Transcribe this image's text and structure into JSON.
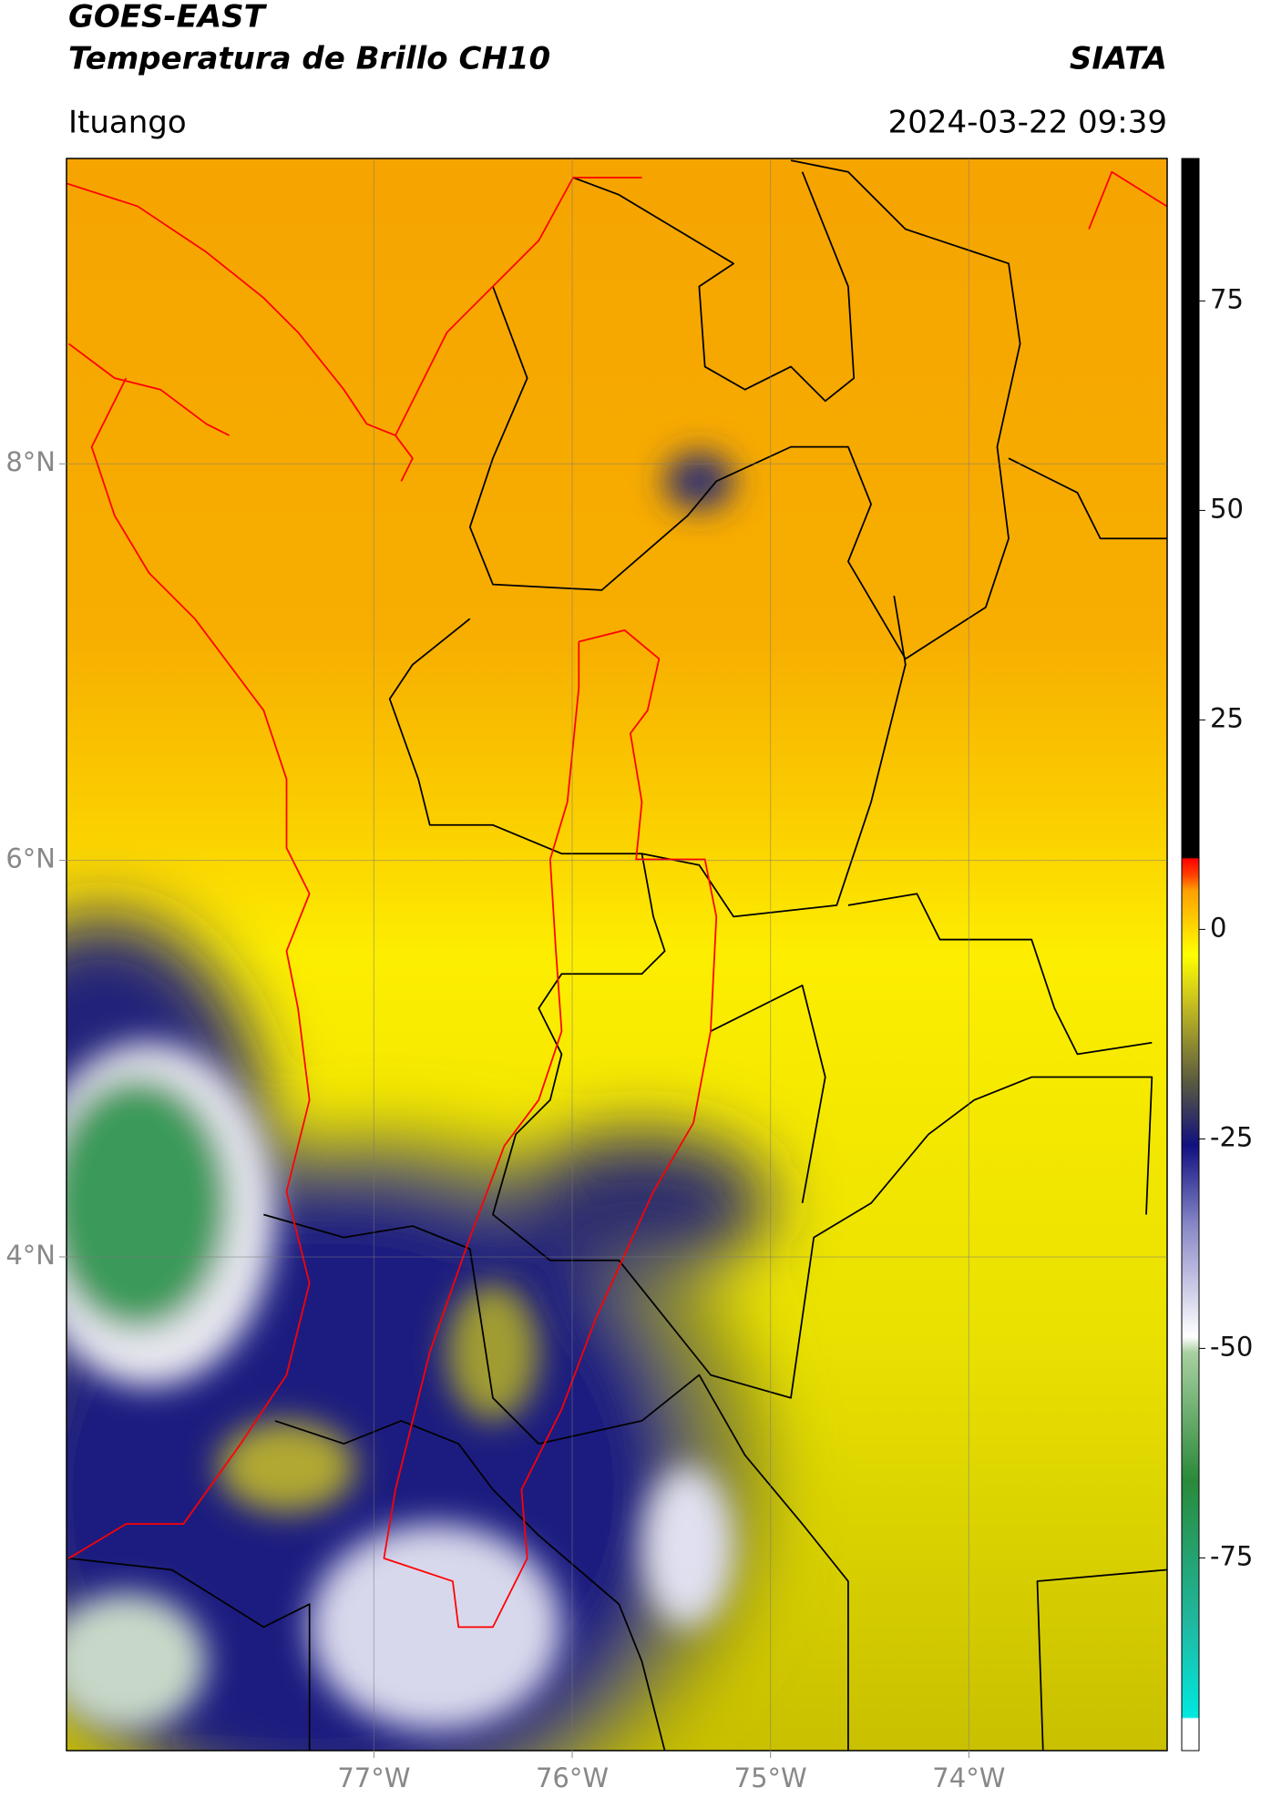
{
  "header": {
    "title": "GOES-EAST",
    "subtitle": "Temperatura de Brillo CH10",
    "org": "SIATA",
    "region": "Ituango",
    "datetime": "2024-03-22 09:39"
  },
  "map": {
    "xlim": [
      -78.55,
      -73.0
    ],
    "ylim": [
      1.51,
      9.54
    ],
    "xticks": [
      {
        "value": -77,
        "label": "77°W"
      },
      {
        "value": -76,
        "label": "76°W"
      },
      {
        "value": -75,
        "label": "75°W"
      },
      {
        "value": -74,
        "label": "74°W"
      }
    ],
    "yticks": [
      {
        "value": 8,
        "label": "8°N"
      },
      {
        "value": 6,
        "label": "6°N"
      },
      {
        "value": 4,
        "label": "4°N"
      }
    ],
    "grid": true
  },
  "colorbar": {
    "lim": [
      -98,
      92
    ],
    "ticks": [
      75,
      50,
      25,
      0,
      -25,
      -50,
      -75
    ]
  }
}
